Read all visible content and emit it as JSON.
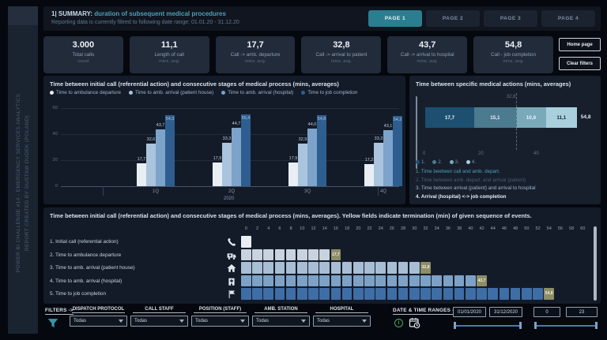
{
  "colors": {
    "background": "#05080e",
    "panel": "#141b28",
    "card": "#222b3a",
    "accent_teal": "#2b7e90",
    "termination_yellow": "#8d8d66",
    "slider_blue": "#4c78aa",
    "info_green": "#3fae5a"
  },
  "sidebar": {
    "line1": "POWER BI CHALLENGE #14 - EMERGENCY SERVICES ANALYTICS",
    "line2": "REPORT CREATED BY GUSTAW DUDEK (POLAND)"
  },
  "header": {
    "title_prefix": "1| SUMMARY:",
    "title": "duration of subsequent medical procedures",
    "subtitle": "Reporting data is currently filtred to following date range: 01.01.20 - 31.12.20",
    "tabs": [
      {
        "label": "PAGE 1",
        "active": true
      },
      {
        "label": "PAGE 2",
        "active": false
      },
      {
        "label": "PAGE 3",
        "active": false
      },
      {
        "label": "PAGE 4",
        "active": false
      }
    ]
  },
  "kpis": [
    {
      "value": "3.000",
      "label": "Total calls",
      "sub": "count"
    },
    {
      "value": "11,1",
      "label": "Length of call",
      "sub": "mins. avg."
    },
    {
      "value": "17,7",
      "label": "Call -> amb. departure",
      "sub": "mins. avg."
    },
    {
      "value": "32,8",
      "label": "Call -> arrival to patient",
      "sub": "mins. avg."
    },
    {
      "value": "43,7",
      "label": "Call -> arrival to hospital",
      "sub": "mins. avg."
    },
    {
      "value": "54,8",
      "label": "Call - job completion",
      "sub": "mins. avg."
    }
  ],
  "side_buttons": {
    "home": "Home page",
    "clear": "Clear filters"
  },
  "chart_data": [
    {
      "type": "bar",
      "title": "Time between initial call (referential action) and consecutive stages of medical process (mins, averages)",
      "categories": [
        "1Q",
        "2Q",
        "3Q",
        "4Q"
      ],
      "series": [
        {
          "name": "Time to ambulance departure",
          "color": "#e9eef4",
          "values": [
            17.7,
            17.9,
            17.9,
            17.2
          ]
        },
        {
          "name": "Time to amb. arrival (patient house)",
          "color": "#a9c4dc",
          "values": [
            32.6,
            33.3,
            32.9,
            33.3
          ]
        },
        {
          "name": "Time to amb. arrival (hospital)",
          "color": "#7da3cb",
          "values": [
            43.7,
            44.7,
            44.0,
            43.1
          ]
        },
        {
          "name": "Time to job completion",
          "color": "#2e5e8f",
          "values": [
            54.3,
            55.4,
            54.8,
            54.2
          ]
        }
      ],
      "xlabel": "2020",
      "ylim": [
        0,
        60
      ],
      "yticks": [
        0,
        20,
        40,
        60
      ],
      "legend_position": "top",
      "grid": true
    },
    {
      "type": "bar",
      "subtype": "stacked-horizontal",
      "title": "Time between specific medical actions (mins, averages)",
      "segments": [
        {
          "label": "1",
          "value": 17.7,
          "color": "#1d4f70"
        },
        {
          "label": "2",
          "value": 15.1,
          "color": "#4c7a8e"
        },
        {
          "label": "3",
          "value": 10.9,
          "color": "#7aa9ba"
        },
        {
          "label": "4",
          "value": 11.1,
          "color": "#a9cfdc"
        }
      ],
      "total": 54.8,
      "reference_line": 32.8,
      "xticks": [
        0,
        20,
        40
      ],
      "legend_numbers": [
        "1.",
        "2.",
        "3.",
        "4."
      ],
      "legend_lines": [
        {
          "text": "1. Time beetwen call and amb. depart.",
          "color": "#4fa0b5"
        },
        {
          "text": "2. Time between amb. depart. and arrival (patient)",
          "color": "#475b70"
        },
        {
          "text": "3. Time between arrival (patient) and arrival to hospital",
          "color": "#9db4ca"
        },
        {
          "text": "4. Arrival (hospital) <-> job completion",
          "color": "#e3edf6"
        }
      ]
    },
    {
      "type": "heatmap",
      "title": "Time between initial call (referential action) and consecutive stages of medical process (mins, averages). Yellow fields indicate termination (min) of given sequence of events.",
      "columns": [
        0,
        2,
        4,
        6,
        8,
        10,
        12,
        14,
        16,
        18,
        20,
        22,
        24,
        26,
        28,
        30,
        32,
        34,
        36,
        38,
        40,
        42,
        44,
        46,
        48,
        50,
        52,
        54,
        56,
        58,
        60
      ],
      "termination_color": "#8d8d66",
      "rows": [
        {
          "label": "1. Initial call (referential action)",
          "icon": "phone-icon",
          "plain_cells": 1,
          "termination": null,
          "color": "#e9eef4"
        },
        {
          "label": "2. Time to ambulance departure",
          "icon": "ambulance-icon",
          "plain_cells": 8,
          "termination": 17.7,
          "color": "#c9d3df"
        },
        {
          "label": "3. Time to amb. arrival (patient house)",
          "icon": "house-icon",
          "plain_cells": 16,
          "termination": 32.8,
          "color": "#a7bed4"
        },
        {
          "label": "4. Time to amb. arrival (hospital)",
          "icon": "hospital-icon",
          "plain_cells": 21,
          "termination": 43.7,
          "color": "#7ea2c6"
        },
        {
          "label": "5. Time to job completion",
          "icon": "flag-icon",
          "plain_cells": 27,
          "termination": 54.8,
          "color": "#3f6da6"
        }
      ]
    }
  ],
  "filters": {
    "label": "FILTERS ->",
    "dropdowns": [
      {
        "name": "DISPATCH PROTOCOL",
        "value": "Todas"
      },
      {
        "name": "CALL STAFF",
        "value": "Todas"
      },
      {
        "name": "POSITION (STAFF)",
        "value": "Todas"
      },
      {
        "name": "AMB. STATION",
        "value": "Todas"
      },
      {
        "name": "HOSPITAL",
        "value": "Todas"
      }
    ],
    "date_label": "DATE & TIME RANGES ->",
    "date_from": "01/01/2020",
    "date_to": "31/12/2020",
    "hour_from": "0",
    "hour_to": "23"
  }
}
